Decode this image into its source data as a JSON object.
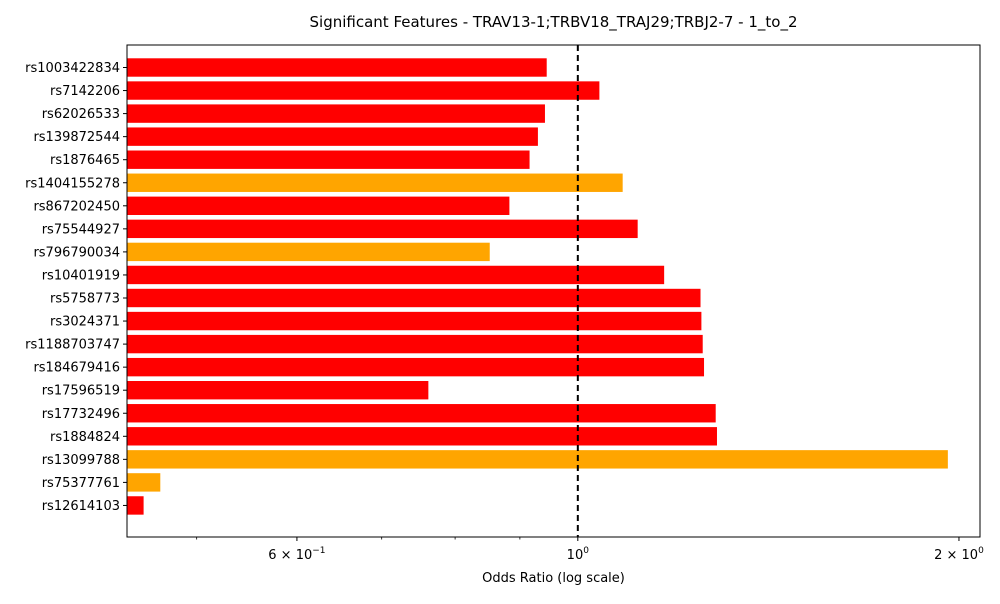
{
  "chart_data": {
    "type": "bar",
    "orientation": "horizontal",
    "title": "Significant Features - TRAV13-1;TRBV18_TRAJ29;TRBJ2-7 - 1_to_2",
    "xlabel": "Odds Ratio (log scale)",
    "ylabel": "",
    "xscale": "log",
    "xlim": [
      0.4405,
      2.078
    ],
    "reference_line": 1.0,
    "xticks": [
      {
        "value": 0.6,
        "mantissa": "6",
        "exponent": "−1"
      },
      {
        "value": 1.0,
        "mantissa": "",
        "exponent": "0"
      },
      {
        "value": 2.0,
        "mantissa": "2",
        "exponent": "0"
      }
    ],
    "colors": {
      "red": "#ff0000",
      "orange": "#ffa500"
    },
    "bars": [
      {
        "label": "rs1003422834",
        "value": 0.945,
        "color": "red"
      },
      {
        "label": "rs7142206",
        "value": 1.04,
        "color": "red"
      },
      {
        "label": "rs62026533",
        "value": 0.942,
        "color": "red"
      },
      {
        "label": "rs139872544",
        "value": 0.93,
        "color": "red"
      },
      {
        "label": "rs1876465",
        "value": 0.916,
        "color": "red"
      },
      {
        "label": "rs1404155278",
        "value": 1.085,
        "color": "orange"
      },
      {
        "label": "rs867202450",
        "value": 0.883,
        "color": "red"
      },
      {
        "label": "rs75544927",
        "value": 1.115,
        "color": "red"
      },
      {
        "label": "rs796790034",
        "value": 0.852,
        "color": "orange"
      },
      {
        "label": "rs10401919",
        "value": 1.17,
        "color": "red"
      },
      {
        "label": "rs5758773",
        "value": 1.25,
        "color": "red"
      },
      {
        "label": "rs3024371",
        "value": 1.252,
        "color": "red"
      },
      {
        "label": "rs1188703747",
        "value": 1.255,
        "color": "red"
      },
      {
        "label": "rs184679416",
        "value": 1.258,
        "color": "red"
      },
      {
        "label": "rs17596519",
        "value": 0.762,
        "color": "red"
      },
      {
        "label": "rs17732496",
        "value": 1.285,
        "color": "red"
      },
      {
        "label": "rs1884824",
        "value": 1.288,
        "color": "red"
      },
      {
        "label": "rs13099788",
        "value": 1.96,
        "color": "orange"
      },
      {
        "label": "rs75377761",
        "value": 0.468,
        "color": "orange"
      },
      {
        "label": "rs12614103",
        "value": 0.454,
        "color": "red"
      }
    ]
  }
}
